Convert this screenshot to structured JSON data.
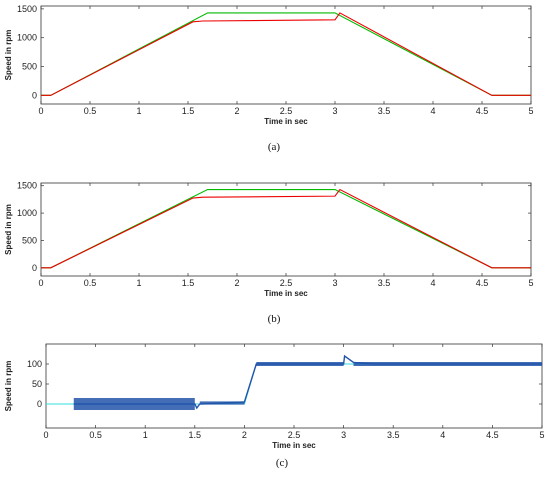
{
  "chart_data": [
    {
      "type": "line",
      "panel_label": "(a)",
      "xlabel": "Time in sec",
      "ylabel": "Speed in rpm",
      "xlim": [
        0,
        5
      ],
      "ylim": [
        -150,
        1550
      ],
      "xticks": [
        0,
        0.5,
        1,
        1.5,
        2,
        2.5,
        3,
        3.5,
        4,
        4.5,
        5
      ],
      "xtick_labels": [
        "0",
        "0.5",
        "1",
        "1.5",
        "2",
        "2.5",
        "3",
        "3.5",
        "4",
        "4.5",
        "5"
      ],
      "yticks": [
        0,
        500,
        1000,
        1500
      ],
      "ytick_labels": [
        "0",
        "500",
        "1000",
        "1500"
      ],
      "grid": false,
      "series": [
        {
          "color": "#00bb00",
          "x": [
            0,
            0.1,
            1.7,
            3.0,
            4.6,
            5.0
          ],
          "y": [
            0,
            0,
            1430,
            1430,
            0,
            0
          ]
        },
        {
          "color": "#ee0000",
          "x": [
            0,
            0.1,
            1.55,
            1.65,
            3.0,
            3.05,
            4.6,
            5.0
          ],
          "y": [
            0,
            0,
            1275,
            1290,
            1310,
            1430,
            0,
            0
          ]
        }
      ]
    },
    {
      "type": "line",
      "panel_label": "(b)",
      "xlabel": "Time in sec",
      "ylabel": "Speed in rpm",
      "xlim": [
        0,
        5
      ],
      "ylim": [
        -150,
        1550
      ],
      "xticks": [
        0,
        0.5,
        1,
        1.5,
        2,
        2.5,
        3,
        3.5,
        4,
        4.5,
        5
      ],
      "xtick_labels": [
        "0",
        "0.5",
        "1",
        "1.5",
        "2",
        "2.5",
        "3",
        "3.5",
        "4",
        "4.5",
        "5"
      ],
      "yticks": [
        0,
        500,
        1000,
        1500
      ],
      "ytick_labels": [
        "0",
        "500",
        "1000",
        "1500"
      ],
      "grid": false,
      "series": [
        {
          "color": "#00bb00",
          "x": [
            0,
            0.1,
            1.7,
            3.0,
            4.6,
            5.0
          ],
          "y": [
            0,
            0,
            1430,
            1430,
            0,
            0
          ]
        },
        {
          "color": "#ee0000",
          "x": [
            0,
            0.1,
            1.55,
            1.65,
            3.0,
            3.05,
            4.6,
            5.0
          ],
          "y": [
            0,
            0,
            1275,
            1290,
            1310,
            1430,
            0,
            0
          ]
        }
      ]
    },
    {
      "type": "line",
      "panel_label": "(c)",
      "xlabel": "Time in sec",
      "ylabel": "Speed in rpm",
      "xlim": [
        0,
        5
      ],
      "ylim": [
        -60,
        150
      ],
      "xticks": [
        0,
        0.5,
        1,
        1.5,
        2,
        2.5,
        3,
        3.5,
        4,
        4.5,
        5
      ],
      "xtick_labels": [
        "0",
        "0.5",
        "1",
        "1.5",
        "2",
        "2.5",
        "3",
        "3.5",
        "4",
        "4.5",
        "5"
      ],
      "yticks": [
        0,
        50,
        100
      ],
      "ytick_labels": [
        "0",
        "50",
        "100"
      ],
      "grid": false,
      "series": [
        {
          "color": "#33dddd",
          "x": [
            0,
            0.28,
            1.5,
            1.52,
            2.0,
            2.12,
            3.0,
            5.0
          ],
          "y": [
            0,
            0,
            0,
            0,
            0,
            100,
            100,
            100
          ]
        },
        {
          "color": "#2255aa",
          "x": [
            0.28,
            1.5,
            1.52,
            1.55,
            2.0,
            2.12,
            3.0,
            3.01,
            3.1,
            3.3,
            5.0
          ],
          "y": [
            0,
            0,
            -10,
            0,
            5,
            100,
            100,
            120,
            104,
            100,
            100
          ],
          "band": [
            {
              "x0": 0.28,
              "x1": 1.5,
              "amp": 15
            },
            {
              "x0": 1.55,
              "x1": 2.0,
              "amp": 4
            },
            {
              "x0": 2.12,
              "x1": 3.0,
              "amp": 5
            },
            {
              "x0": 3.1,
              "x1": 5.0,
              "amp": 5
            }
          ]
        }
      ]
    }
  ]
}
